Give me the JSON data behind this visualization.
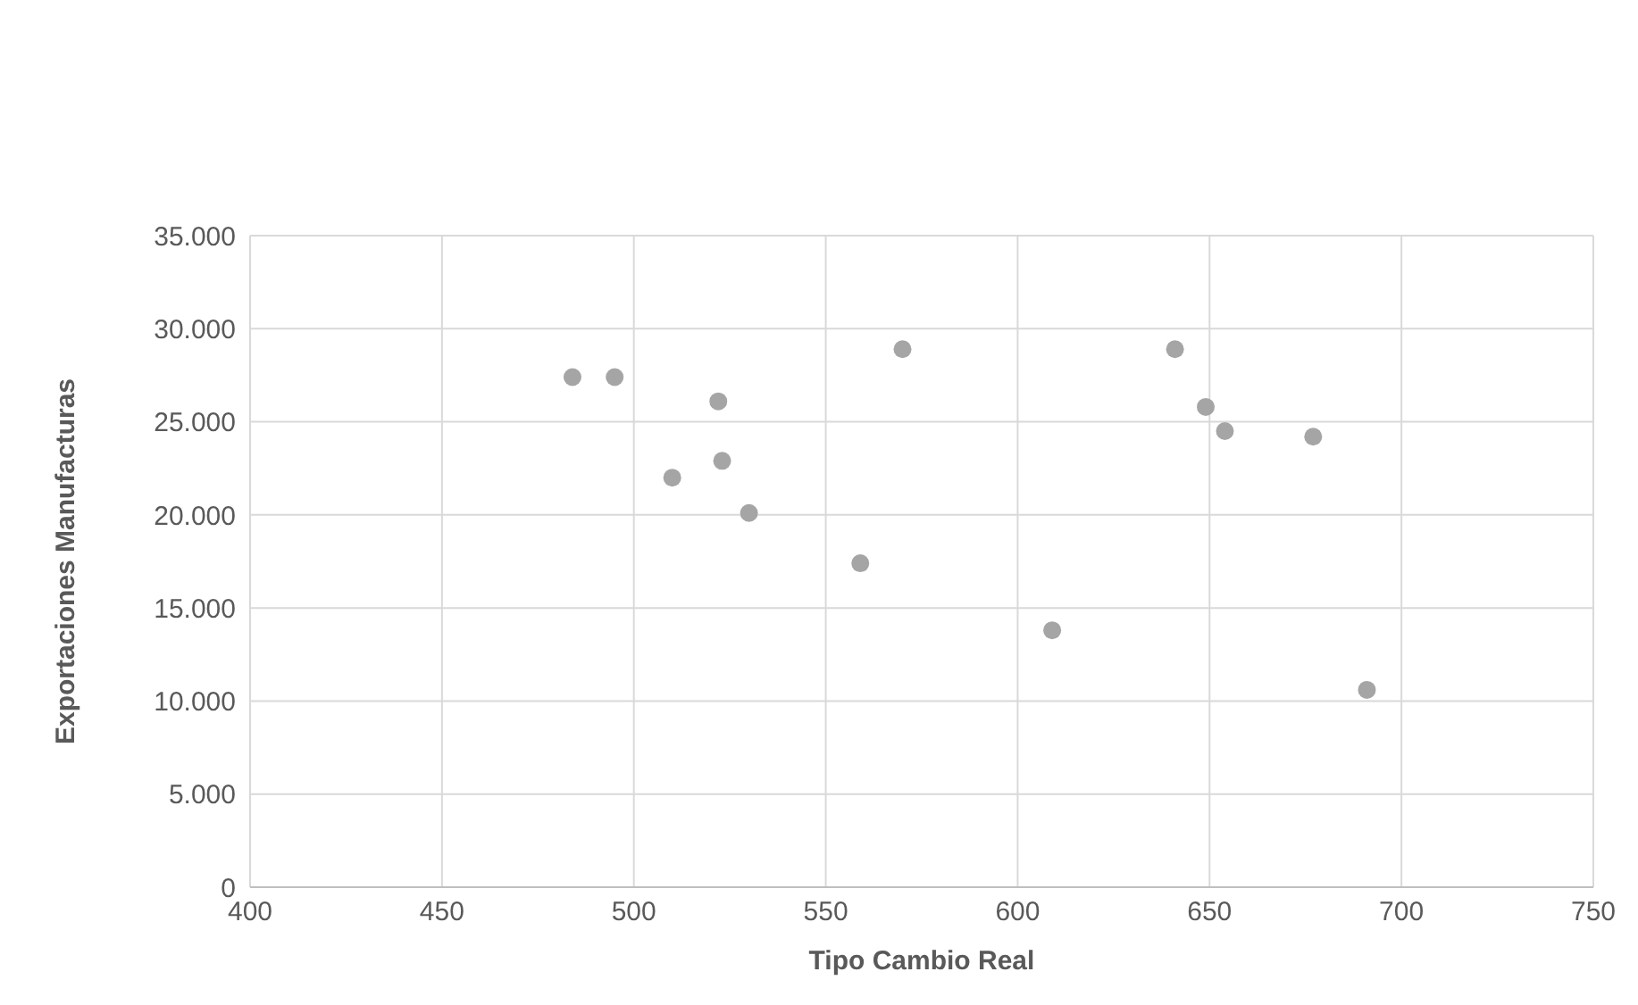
{
  "chart_data": {
    "type": "scatter",
    "xlabel": "Tipo Cambio  Real",
    "ylabel": "Exportaciones Manufacturas",
    "x": [
      484,
      495,
      522,
      510,
      523,
      530,
      559,
      570,
      609,
      641,
      649,
      654,
      677,
      691
    ],
    "values": [
      27400,
      27400,
      26100,
      22000,
      22900,
      20100,
      17400,
      28900,
      13800,
      28900,
      25800,
      24500,
      24200,
      10600
    ],
    "color": "#a5a5a5",
    "marker": "circle",
    "grid": true,
    "xlim": [
      400,
      750
    ],
    "xticks": [
      400,
      450,
      500,
      550,
      600,
      650,
      700,
      750
    ],
    "ylim": [
      0,
      35000
    ],
    "yticks": [
      {
        "value": 0,
        "label": "0"
      },
      {
        "value": 5000,
        "label": "5.000"
      },
      {
        "value": 10000,
        "label": "10.000"
      },
      {
        "value": 15000,
        "label": "15.000"
      },
      {
        "value": 20000,
        "label": "20.000"
      },
      {
        "value": 25000,
        "label": "25.000"
      },
      {
        "value": 30000,
        "label": "30.000"
      },
      {
        "value": 35000,
        "label": "35.000"
      }
    ]
  }
}
